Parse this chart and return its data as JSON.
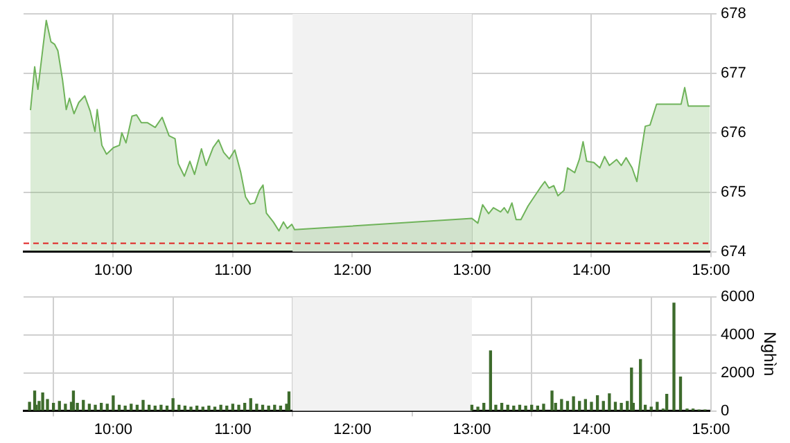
{
  "chart_data": [
    {
      "type": "area",
      "color": "#6fb35a",
      "grid": true,
      "legend": false,
      "marker": "none",
      "xlim": [
        9.25,
        15
      ],
      "xticks": [
        {
          "value": 10,
          "label": "10:00"
        },
        {
          "value": 11,
          "label": "11:00"
        },
        {
          "value": 12,
          "label": "12:00"
        },
        {
          "value": 13,
          "label": "13:00"
        },
        {
          "value": 14,
          "label": "14:00"
        },
        {
          "value": 15,
          "label": "15:00"
        }
      ],
      "ylim": [
        674,
        678
      ],
      "yticks": [
        674,
        675,
        676,
        677,
        678
      ],
      "bands": [
        {
          "axis": "x",
          "from": 11.5,
          "to": 13,
          "color": "#f2f2f2"
        }
      ],
      "ref_lines": [
        {
          "axis": "y",
          "value": 674.14,
          "color": "#e02020",
          "line_style": "dashed"
        }
      ],
      "x": [
        9.308,
        9.343,
        9.37,
        9.413,
        9.44,
        9.479,
        9.509,
        9.537,
        9.576,
        9.607,
        9.634,
        9.672,
        9.712,
        9.762,
        9.808,
        9.847,
        9.866,
        9.905,
        9.944,
        10.002,
        10.052,
        10.072,
        10.107,
        10.157,
        10.195,
        10.235,
        10.285,
        10.351,
        10.409,
        10.467,
        10.517,
        10.544,
        10.595,
        10.641,
        10.68,
        10.738,
        10.777,
        10.835,
        10.881,
        10.924,
        10.971,
        11.017,
        11.067,
        11.107,
        11.145,
        11.184,
        11.223,
        11.253,
        11.281,
        11.339,
        11.386,
        11.424,
        11.456,
        11.494,
        11.517,
        13.0,
        13.05,
        13.09,
        13.14,
        13.18,
        13.24,
        13.27,
        13.3,
        13.335,
        13.37,
        13.41,
        13.47,
        13.53,
        13.57,
        13.61,
        13.645,
        13.685,
        13.72,
        13.77,
        13.8,
        13.86,
        13.9,
        13.93,
        13.96,
        14.02,
        14.07,
        14.11,
        14.15,
        14.21,
        14.25,
        14.29,
        14.34,
        14.38,
        14.41,
        14.45,
        14.49,
        14.545,
        14.6,
        14.75,
        14.78,
        14.81,
        14.99
      ],
      "values": [
        676.38,
        677.11,
        676.73,
        677.45,
        677.89,
        677.53,
        677.49,
        677.38,
        676.89,
        676.39,
        676.58,
        676.32,
        676.51,
        676.62,
        676.36,
        676.02,
        676.39,
        675.79,
        675.64,
        675.75,
        675.79,
        676.0,
        675.83,
        676.28,
        676.3,
        676.17,
        676.17,
        676.09,
        676.26,
        675.95,
        675.9,
        675.48,
        675.27,
        675.52,
        675.3,
        675.73,
        675.45,
        675.75,
        675.88,
        675.67,
        675.56,
        675.71,
        675.33,
        674.92,
        674.8,
        674.82,
        675.03,
        675.12,
        674.65,
        674.5,
        674.35,
        674.5,
        674.39,
        674.46,
        674.37,
        674.56,
        674.48,
        674.79,
        674.64,
        674.74,
        674.67,
        674.74,
        674.65,
        674.82,
        674.54,
        674.54,
        674.77,
        674.95,
        675.07,
        675.18,
        675.07,
        675.11,
        674.94,
        675.03,
        675.41,
        675.33,
        675.56,
        675.85,
        675.52,
        675.5,
        675.41,
        675.6,
        675.45,
        675.55,
        675.45,
        675.58,
        675.41,
        675.18,
        675.6,
        676.11,
        676.13,
        676.48,
        676.48,
        676.48,
        676.76,
        676.45,
        676.45
      ]
    },
    {
      "type": "bar",
      "color": "#3d6b2c",
      "grid": true,
      "legend": false,
      "ylabel": "Nghìn",
      "xlim": [
        9.25,
        15
      ],
      "xticks": [
        {
          "value": 10,
          "label": "10:00"
        },
        {
          "value": 11,
          "label": "11:00"
        },
        {
          "value": 12,
          "label": "12:00"
        },
        {
          "value": 13,
          "label": "13:00"
        },
        {
          "value": 14,
          "label": "14:00"
        },
        {
          "value": 15,
          "label": "15:00"
        }
      ],
      "ylim": [
        0,
        6000
      ],
      "yticks": [
        0,
        2000,
        4000,
        6000
      ],
      "bands": [
        {
          "axis": "x",
          "from": 11.5,
          "to": 13,
          "color": "#f2f2f2"
        }
      ],
      "x": [
        9.3,
        9.343,
        9.355,
        9.38,
        9.41,
        9.45,
        9.5,
        9.55,
        9.6,
        9.65,
        9.667,
        9.7,
        9.75,
        9.8,
        9.85,
        9.9,
        9.95,
        10.0,
        10.05,
        10.1,
        10.15,
        10.2,
        10.25,
        10.3,
        10.35,
        10.4,
        10.45,
        10.5,
        10.55,
        10.6,
        10.65,
        10.7,
        10.75,
        10.8,
        10.85,
        10.9,
        10.95,
        11.0,
        11.05,
        11.1,
        11.15,
        11.2,
        11.25,
        11.3,
        11.35,
        11.4,
        11.45,
        11.47,
        13.0,
        13.05,
        13.1,
        13.156,
        13.2,
        13.25,
        13.3,
        13.35,
        13.4,
        13.45,
        13.5,
        13.55,
        13.6,
        13.67,
        13.7,
        13.75,
        13.8,
        13.85,
        13.9,
        13.95,
        14.0,
        14.05,
        14.1,
        14.15,
        14.2,
        14.25,
        14.3,
        14.335,
        14.35,
        14.41,
        14.45,
        14.5,
        14.55,
        14.6,
        14.63,
        14.69,
        14.745,
        14.8,
        14.85,
        14.9,
        14.95
      ],
      "values": [
        450,
        1050,
        300,
        500,
        950,
        600,
        400,
        500,
        350,
        450,
        1050,
        400,
        550,
        350,
        300,
        400,
        350,
        790,
        300,
        250,
        350,
        300,
        550,
        300,
        250,
        300,
        250,
        650,
        300,
        250,
        200,
        250,
        200,
        250,
        200,
        300,
        250,
        350,
        300,
        400,
        650,
        350,
        300,
        250,
        300,
        250,
        350,
        1000,
        300,
        200,
        400,
        3160,
        300,
        400,
        300,
        250,
        300,
        250,
        300,
        250,
        350,
        1050,
        400,
        600,
        500,
        750,
        500,
        600,
        450,
        800,
        500,
        900,
        450,
        400,
        500,
        2260,
        400,
        2710,
        300,
        200,
        450,
        100,
        870,
        5680,
        1790,
        100,
        100,
        50,
        50
      ]
    }
  ]
}
